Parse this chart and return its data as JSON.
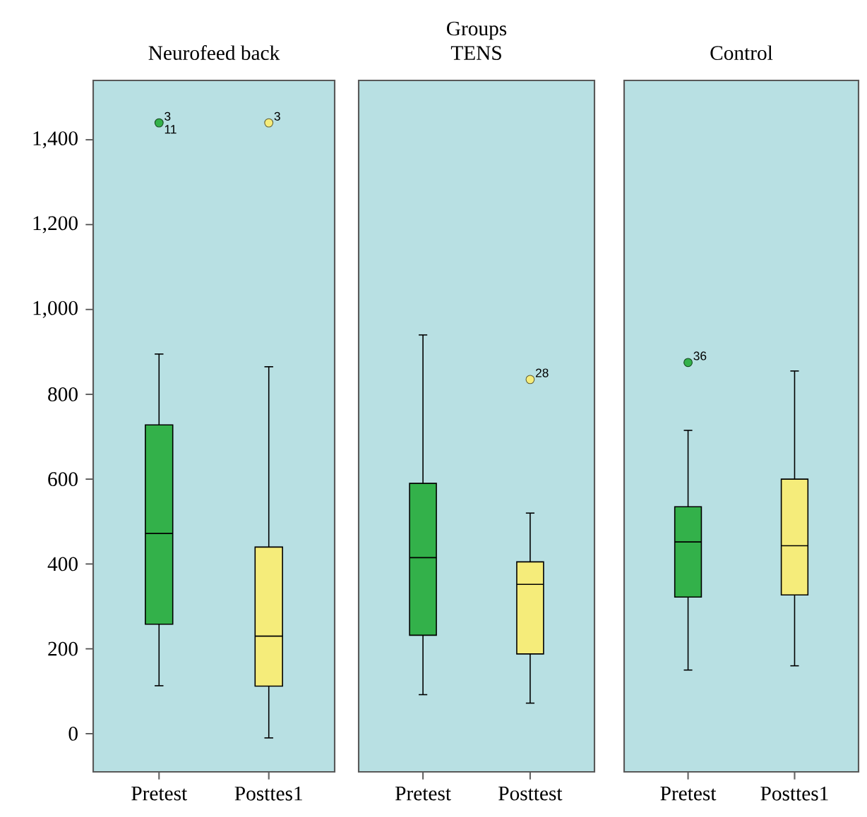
{
  "chart_data": [
    {
      "type": "box",
      "title": "Neurofeed back",
      "categories": [
        "Pretest",
        "Posttes1"
      ],
      "colors": [
        "#33b14a",
        "#f5ec7a"
      ],
      "ylim": [
        -90,
        1540
      ],
      "yticks": [
        {
          "value": 0,
          "label": "0"
        },
        {
          "value": 200,
          "label": "200"
        },
        {
          "value": 400,
          "label": "400"
        },
        {
          "value": 600,
          "label": "600"
        },
        {
          "value": 800,
          "label": "800"
        },
        {
          "value": 1000,
          "label": "1,000"
        },
        {
          "value": 1200,
          "label": "1,200"
        },
        {
          "value": 1400,
          "label": "1,400"
        }
      ],
      "boxes": [
        {
          "low": 113,
          "q1": 258,
          "median": 472,
          "q3": 728,
          "high": 895,
          "outliers": [
            1440
          ]
        },
        {
          "low": -10,
          "q1": 112,
          "median": 230,
          "q3": 440,
          "high": 865,
          "outliers": [
            1440
          ]
        }
      ],
      "annotations": [
        "3",
        "3",
        "11"
      ]
    },
    {
      "type": "box",
      "title": "Groups",
      "subtitle": "TENS",
      "categories": [
        "Pretest",
        "Posttest"
      ],
      "colors": [
        "#33b14a",
        "#f5ec7a"
      ],
      "ylim": [
        -90,
        1540
      ],
      "tick_labels": "x",
      "boxes": [
        {
          "low": 92,
          "q1": 232,
          "median": 415,
          "q3": 590,
          "high": 940
        },
        {
          "low": 72,
          "q1": 188,
          "median": 352,
          "q3": 405,
          "high": 520,
          "outliers": [
            835
          ]
        }
      ],
      "annotations": [
        "28"
      ]
    },
    {
      "type": "box",
      "title": "Control",
      "categories": [
        "Pretest",
        "Posttes1"
      ],
      "colors": [
        "#33b14a",
        "#f5ec7a"
      ],
      "ylim": [
        -90,
        1540
      ],
      "tick_labels": "x",
      "boxes": [
        {
          "low": 150,
          "q1": 322,
          "median": 452,
          "q3": 535,
          "high": 715,
          "outliers": [
            875
          ]
        },
        {
          "low": 160,
          "q1": 327,
          "median": 443,
          "q3": 600,
          "high": 855
        }
      ],
      "annotations": [
        "36"
      ]
    }
  ]
}
